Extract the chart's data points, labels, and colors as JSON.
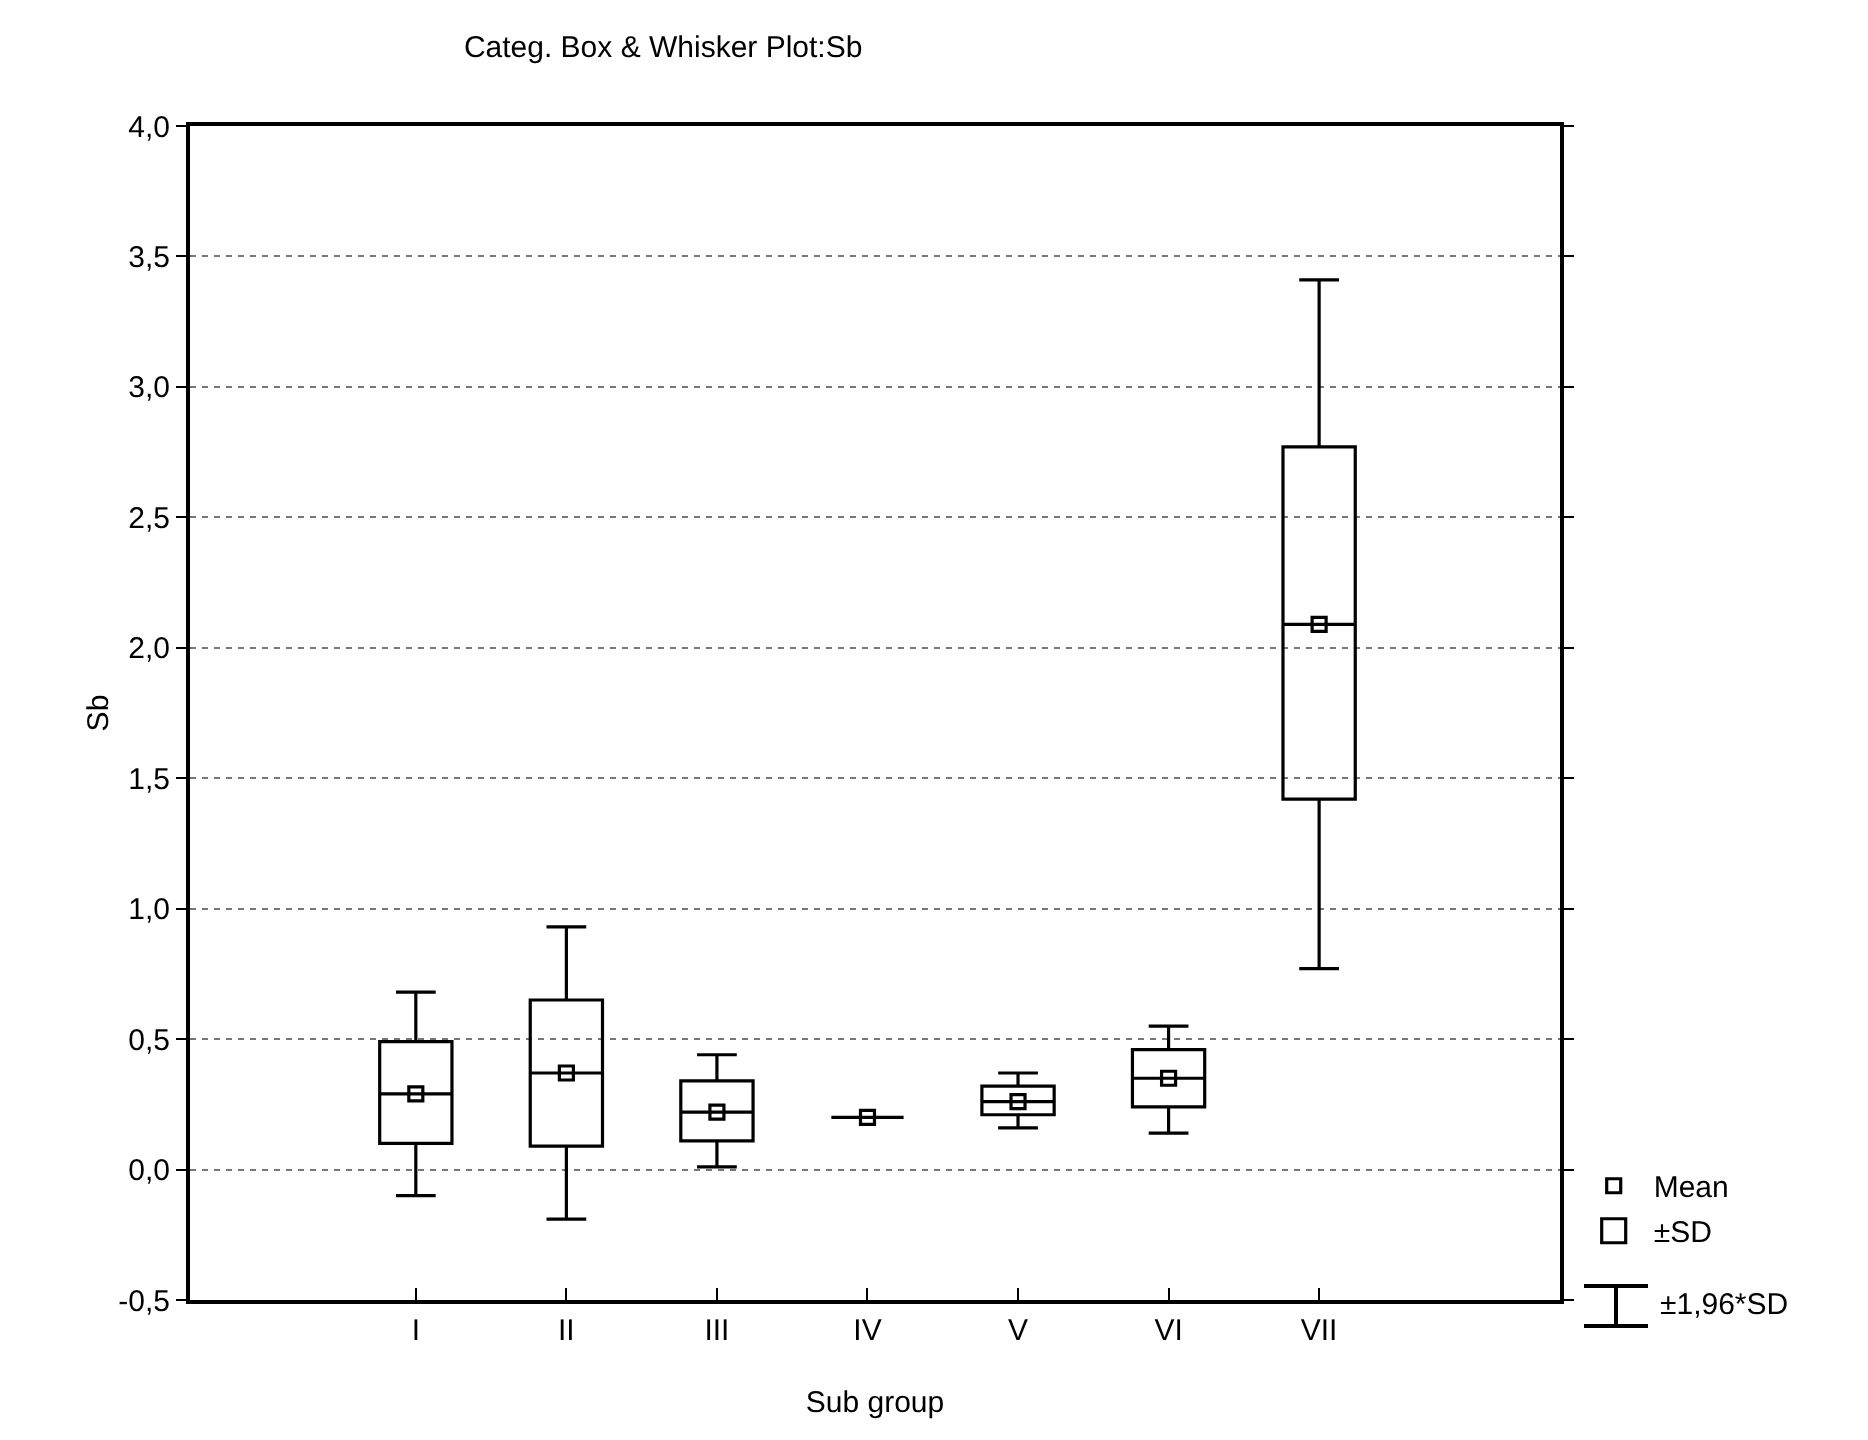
{
  "chart_data": {
    "type": "box",
    "title": "Categ. Box & Whisker Plot:Sb",
    "xlabel": "Sub group",
    "ylabel": "Sb",
    "categories": [
      "I",
      "II",
      "III",
      "IV",
      "V",
      "VI",
      "VII"
    ],
    "series": [
      {
        "name": "Mean",
        "type": "scatter",
        "color": "#000000",
        "marker": "square",
        "x": [
          "I",
          "II",
          "III",
          "IV",
          "V",
          "VI",
          "VII"
        ],
        "values": [
          0.29,
          0.37,
          0.22,
          0.2,
          0.26,
          0.35,
          2.09
        ]
      },
      {
        "name": "±SD",
        "color": "#000000",
        "boxes": [
          {
            "low": -0.1,
            "q1": 0.1,
            "median": 0.29,
            "q3": 0.49,
            "high": 0.68
          },
          {
            "low": -0.19,
            "q1": 0.09,
            "median": 0.37,
            "q3": 0.65,
            "high": 0.93
          },
          {
            "low": 0.01,
            "q1": 0.11,
            "median": 0.22,
            "q3": 0.34,
            "high": 0.44
          },
          {
            "low": 0.2,
            "q1": 0.2,
            "median": 0.2,
            "q3": 0.2,
            "high": 0.2
          },
          {
            "low": 0.16,
            "q1": 0.21,
            "median": 0.26,
            "q3": 0.32,
            "high": 0.37
          },
          {
            "low": 0.14,
            "q1": 0.24,
            "median": 0.35,
            "q3": 0.46,
            "high": 0.55
          },
          {
            "low": 0.77,
            "q1": 1.42,
            "median": 2.09,
            "q3": 2.77,
            "high": 3.41
          }
        ]
      }
    ],
    "annotations": [
      "±1,96*SD"
    ],
    "ylim": [
      -0.5,
      4.0
    ],
    "yticks": [
      {
        "value": -0.5,
        "label": "-0,5"
      },
      {
        "value": 0,
        "label": "0,0"
      },
      {
        "value": 0.5,
        "label": "0,5"
      },
      {
        "value": 1,
        "label": "1,0"
      },
      {
        "value": 1.5,
        "label": "1,5"
      },
      {
        "value": 2,
        "label": "2,0"
      },
      {
        "value": 2.5,
        "label": "2,5"
      },
      {
        "value": 3,
        "label": "3,0"
      },
      {
        "value": 3.5,
        "label": "3,5"
      },
      {
        "value": 4,
        "label": "4,0"
      }
    ],
    "grid": "y",
    "legend": "bottom right"
  }
}
